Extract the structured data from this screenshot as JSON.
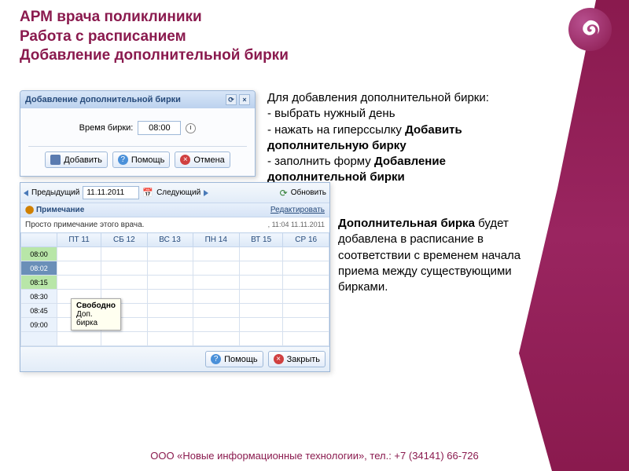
{
  "colors": {
    "accent": "#8a1a4e",
    "title_text": "#8a1a4e",
    "panel_border": "#9eb8d8",
    "panel_header_bg_top": "#d8e6f8",
    "panel_header_bg_bot": "#bcd2ee",
    "footer_text": "#8a1a4e"
  },
  "title": {
    "line1": "АРМ врача поликлиники",
    "line2": "Работа с расписанием",
    "line3": "Добавление дополнительной бирки"
  },
  "dialog": {
    "title": "Добавление дополнительной бирки",
    "field_label": "Время бирки:",
    "field_value": "08:00",
    "buttons": {
      "add": "Добавить",
      "help": "Помощь",
      "cancel": "Отмена"
    }
  },
  "schedule": {
    "nav": {
      "prev": "Предыдущий",
      "date": "11.11.2011",
      "next": "Следующий",
      "refresh": "Обновить"
    },
    "note_label": "Примечание",
    "note_edit": "Редактировать",
    "note_text": "Просто примечание этого врача.",
    "note_timestamp": ", 11:04 11.11.2011",
    "day_headers": [
      "ПТ 11",
      "СБ 12",
      "ВС 13",
      "ПН 14",
      "ВТ 15",
      "СР 16"
    ],
    "time_rows": [
      {
        "time": "08:00",
        "style": "green"
      },
      {
        "time": "08:02",
        "style": "dark"
      },
      {
        "time": "08:15",
        "style": "green"
      },
      {
        "time": "08:30",
        "style": "light"
      },
      {
        "time": "08:45",
        "style": "light"
      },
      {
        "time": "09:00",
        "style": "light"
      },
      {
        "time": "",
        "style": "light"
      }
    ],
    "tooltip": {
      "line1": "Свободно",
      "line2": "Доп.",
      "line3": "бирка"
    },
    "footer": {
      "help": "Помощь",
      "close": "Закрыть"
    }
  },
  "instructions": {
    "p1_lead": "Для добавления дополнительной бирки:",
    "p1_i1": "- выбрать нужный день",
    "p1_i2_a": "- нажать на гиперссылку ",
    "p1_i2_b": "Добавить дополнительную бирку",
    "p1_i3_a": "- заполнить форму ",
    "p1_i3_b": "Добавление дополнительной бирки",
    "p2_a": "Дополнительная бирка",
    "p2_b": " будет добавлена в расписание в соответствии с временем начала приема между существующими бирками."
  },
  "footer_text": "ООО «Новые информационные технологии», тел.: +7 (34141) 66-726"
}
